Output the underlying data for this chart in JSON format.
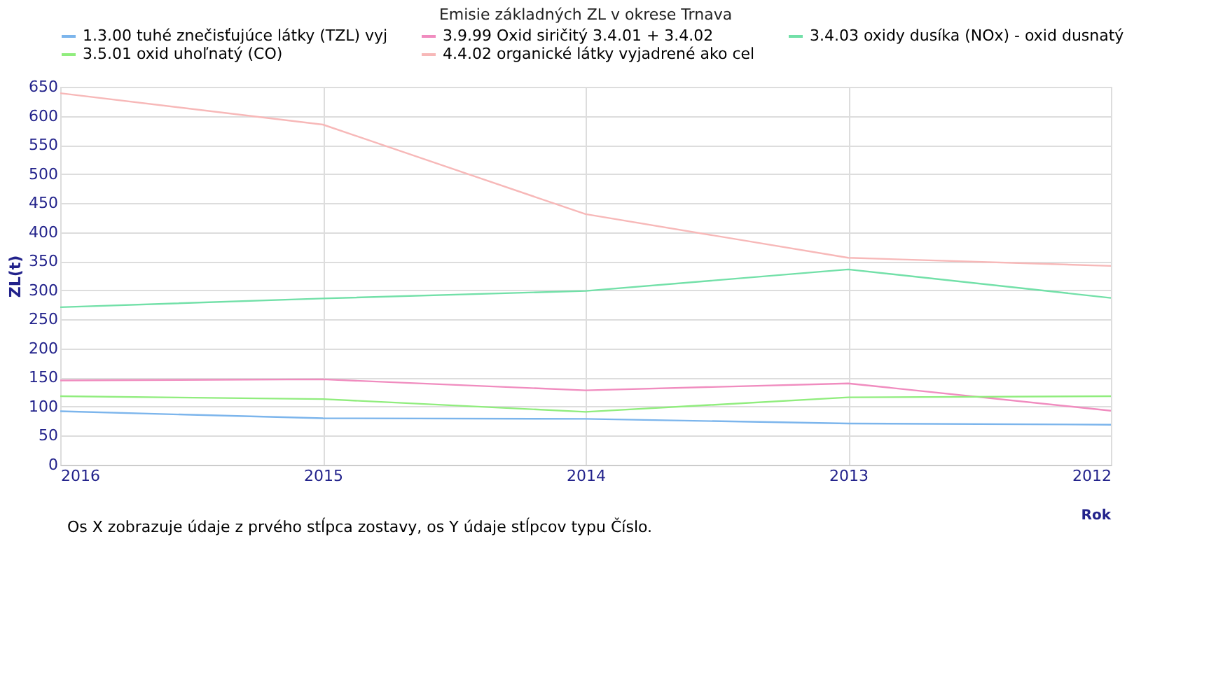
{
  "chart_data": {
    "type": "line",
    "title": "Emisie základných ZL v okrese Trnava",
    "xlabel": "Rok",
    "ylabel": "ZL(t)",
    "categories": [
      "2016",
      "2015",
      "2014",
      "2013",
      "2012"
    ],
    "series": [
      {
        "name": "1.3.00 tuhé znečisťujúce látky (TZL) vyj",
        "color": "#7cb5ec",
        "values": [
          92,
          80,
          79,
          71,
          69
        ]
      },
      {
        "name": "3.9.99 Oxid siričitý 3.4.01 + 3.4.02",
        "color": "#f08cbf",
        "values": [
          145,
          147,
          128,
          140,
          93
        ]
      },
      {
        "name": "3.4.03 oxidy dusíka (NOx) - oxid dusnatý",
        "color": "#72e0a8",
        "values": [
          271,
          286,
          299,
          336,
          287
        ]
      },
      {
        "name": "3.5.01 oxid uhoľnatý (CO)",
        "color": "#90ed7d",
        "values": [
          118,
          113,
          91,
          116,
          118
        ]
      },
      {
        "name": "4.4.02 organické látky vyjadrené ako cel",
        "color": "#f7b8b8",
        "values": [
          639,
          585,
          431,
          356,
          342
        ]
      }
    ],
    "ylim": [
      0,
      650
    ],
    "yticks": [
      0,
      50,
      100,
      150,
      200,
      250,
      300,
      350,
      400,
      450,
      500,
      550,
      600,
      650
    ],
    "grid": true,
    "legend": "top",
    "marker": "none",
    "line_style": "solid",
    "annotations": [
      "Os X zobrazuje údaje z prvého stĺpca zostavy, os Y údaje stĺpcov typu Číslo."
    ]
  }
}
